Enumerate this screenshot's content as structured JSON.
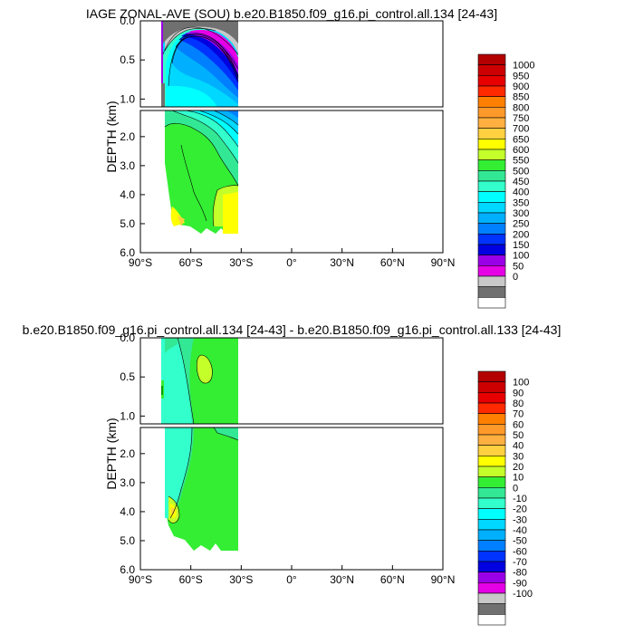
{
  "chart_data": [
    {
      "type": "heatmap",
      "title": "IAGE ZONAL-AVE (SOU) b.e20.B1850.f09_g16.pi_control.all.134 [24-43]",
      "ylabel": "DEPTH (km)",
      "xlim": [
        "90°S",
        "90°N"
      ],
      "x_ticks": [
        "90°S",
        "60°S",
        "30°S",
        "0°",
        "30°N",
        "60°N",
        "90°N"
      ],
      "y_ticks_upper": [
        "0.0",
        "0.5",
        "1.0"
      ],
      "y_ticks_lower": [
        "2.0",
        "3.0",
        "4.0",
        "5.0",
        "6.0"
      ],
      "ylim_upper_km": [
        0,
        1.1
      ],
      "ylim_lower_km": [
        1.1,
        6.0
      ],
      "data_extent_lat": [
        -77,
        -33
      ],
      "colorbar_levels": [
        "1000",
        "950",
        "900",
        "850",
        "800",
        "750",
        "700",
        "650",
        "600",
        "550",
        "500",
        "450",
        "400",
        "350",
        "300",
        "250",
        "200",
        "150",
        "100",
        "50",
        "0"
      ],
      "colorbar_colors": [
        "#b30000",
        "#cc0000",
        "#e80000",
        "#ff2a00",
        "#ff8000",
        "#ff9a2a",
        "#ffb040",
        "#ffd040",
        "#ffff00",
        "#c4ff2a",
        "#33ee33",
        "#33e894",
        "#33ffcc",
        "#00ffff",
        "#00d8ff",
        "#00b0ff",
        "#0080ff",
        "#0033ff",
        "#0000e0",
        "#9a00e8",
        "#e600e6",
        "#c8c8c8",
        "#707070",
        "#ffffff"
      ]
    },
    {
      "type": "heatmap",
      "title": "b.e20.B1850.f09_g16.pi_control.all.134 [24-43] - b.e20.B1850.f09_g16.pi_control.all.133 [24-43]",
      "ylabel": "DEPTH (km)",
      "xlim": [
        "90°S",
        "90°N"
      ],
      "x_ticks": [
        "90°S",
        "60°S",
        "30°S",
        "0°",
        "30°N",
        "60°N",
        "90°N"
      ],
      "y_ticks_upper": [
        "0.0",
        "0.5",
        "1.0"
      ],
      "y_ticks_lower": [
        "2.0",
        "3.0",
        "4.0",
        "5.0",
        "6.0"
      ],
      "ylim_upper_km": [
        0,
        1.1
      ],
      "ylim_lower_km": [
        1.1,
        6.0
      ],
      "data_extent_lat": [
        -77,
        -33
      ],
      "colorbar_levels": [
        "100",
        "90",
        "80",
        "70",
        "60",
        "50",
        "40",
        "30",
        "20",
        "10",
        "0",
        "-10",
        "-20",
        "-30",
        "-40",
        "-50",
        "-60",
        "-70",
        "-80",
        "-90",
        "-100"
      ],
      "colorbar_colors": [
        "#b30000",
        "#cc0000",
        "#e80000",
        "#ff2a00",
        "#ff8000",
        "#ff9a2a",
        "#ffb040",
        "#ffd040",
        "#ffff00",
        "#c4ff2a",
        "#33ee33",
        "#33e894",
        "#33ffcc",
        "#00ffff",
        "#00d8ff",
        "#00b0ff",
        "#0080ff",
        "#0033ff",
        "#0000e0",
        "#9a00e8",
        "#e600e6",
        "#c8c8c8",
        "#707070",
        "#ffffff"
      ]
    }
  ]
}
